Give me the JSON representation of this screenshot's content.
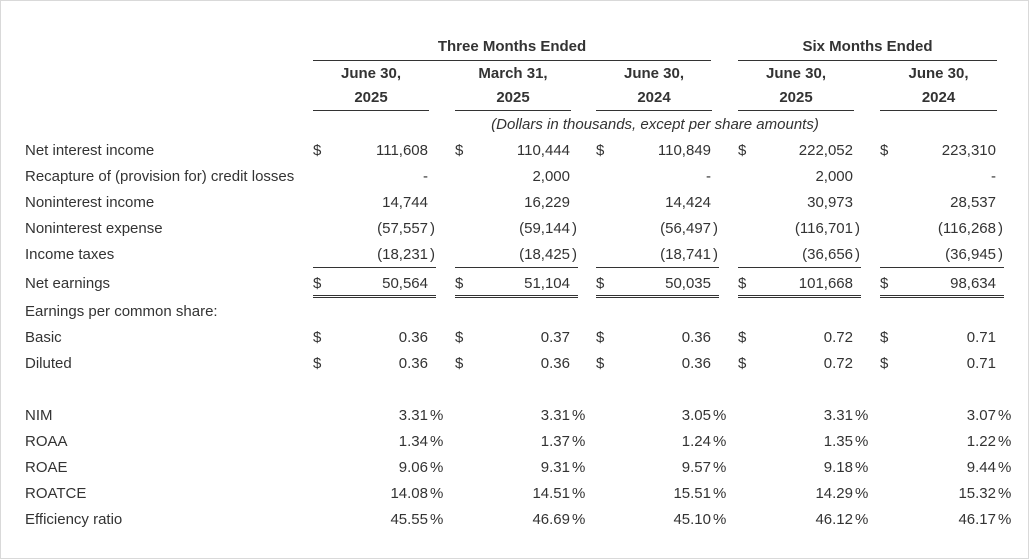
{
  "header": {
    "group_three": "Three Months Ended",
    "group_six": "Six Months Ended",
    "columns": [
      {
        "line1": "June 30,",
        "line2": "2025"
      },
      {
        "line1": "March 31,",
        "line2": "2025"
      },
      {
        "line1": "June 30,",
        "line2": "2024"
      },
      {
        "line1": "June 30,",
        "line2": "2025"
      },
      {
        "line1": "June 30,",
        "line2": "2024"
      }
    ],
    "units_note": "(Dollars in thousands, except per share amounts)"
  },
  "currency_symbol": "$",
  "rows": {
    "net_interest_income": {
      "label": "Net interest income",
      "values": [
        "111,608",
        "110,444",
        "110,849",
        "222,052",
        "223,310"
      ]
    },
    "recapture": {
      "label": "Recapture of (provision for) credit losses",
      "values": [
        "-",
        "2,000",
        "-",
        "2,000",
        "-"
      ]
    },
    "noninterest_income": {
      "label": "Noninterest income",
      "values": [
        "14,744",
        "16,229",
        "14,424",
        "30,973",
        "28,537"
      ]
    },
    "noninterest_expense": {
      "label": "Noninterest expense",
      "values": [
        "(57,557",
        "(59,144",
        "(56,497",
        "(116,701",
        "(116,268"
      ]
    },
    "income_taxes": {
      "label": "Income taxes",
      "values": [
        "(18,231",
        "(18,425",
        "(18,741",
        "(36,656",
        "(36,945"
      ]
    },
    "net_earnings": {
      "label": "Net earnings",
      "values": [
        "50,564",
        "51,104",
        "50,035",
        "101,668",
        "98,634"
      ]
    },
    "eps_header": {
      "label": "Earnings per common share:"
    },
    "basic": {
      "label": "Basic",
      "values": [
        "0.36",
        "0.37",
        "0.36",
        "0.72",
        "0.71"
      ]
    },
    "diluted": {
      "label": "Diluted",
      "values": [
        "0.36",
        "0.36",
        "0.36",
        "0.72",
        "0.71"
      ]
    }
  },
  "ratios": {
    "nim": {
      "label": "NIM",
      "values": [
        "3.31",
        "3.31",
        "3.05",
        "3.31",
        "3.07"
      ]
    },
    "roaa": {
      "label": "ROAA",
      "values": [
        "1.34",
        "1.37",
        "1.24",
        "1.35",
        "1.22"
      ]
    },
    "roae": {
      "label": "ROAE",
      "values": [
        "9.06",
        "9.31",
        "9.57",
        "9.18",
        "9.44"
      ]
    },
    "roatce": {
      "label": "ROATCE",
      "values": [
        "14.08",
        "14.51",
        "15.51",
        "14.29",
        "15.32"
      ]
    },
    "efficiency": {
      "label": "Efficiency ratio",
      "values": [
        "45.55",
        "46.69",
        "45.10",
        "46.12",
        "46.17"
      ]
    }
  },
  "paren_close": ")",
  "percent_sign": "%"
}
